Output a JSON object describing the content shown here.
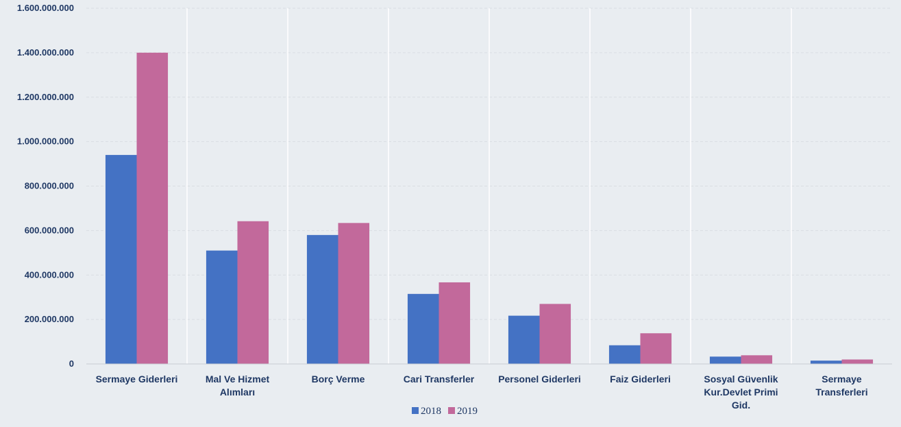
{
  "chart_data": {
    "type": "bar",
    "title": "",
    "xlabel": "",
    "ylabel": "",
    "ylim": [
      0,
      1600000000
    ],
    "yticks": [
      0,
      200000000,
      400000000,
      600000000,
      800000000,
      1000000000,
      1200000000,
      1400000000,
      1600000000
    ],
    "ytick_labels": [
      "0",
      "200.000.000",
      "400.000.000",
      "600.000.000",
      "800.000.000",
      "1.000.000.000",
      "1.200.000.000",
      "1.400.000.000",
      "1.600.000.000"
    ],
    "categories": [
      "Sermaye Giderleri",
      "Mal Ve Hizmet Alımları",
      "Borç Verme",
      "Cari Transferler",
      "Personel Giderleri",
      "Faiz Giderleri",
      "Sosyal Güvenlik Kur.Devlet Primi Gid.",
      "Sermaye Transferleri"
    ],
    "category_lines": [
      [
        "Sermaye Giderleri"
      ],
      [
        "Mal Ve Hizmet",
        "Alımları"
      ],
      [
        "Borç Verme"
      ],
      [
        "Cari Transferler"
      ],
      [
        "Personel Giderleri"
      ],
      [
        "Faiz Giderleri"
      ],
      [
        "Sosyal Güvenlik",
        "Kur.Devlet Primi",
        "Gid."
      ],
      [
        "Sermaye",
        "Transferleri"
      ]
    ],
    "series": [
      {
        "name": "2018",
        "color": "#4472c4",
        "values": [
          940000000,
          510000000,
          580000000,
          315000000,
          217000000,
          84000000,
          33000000,
          15000000
        ]
      },
      {
        "name": "2019",
        "color": "#c2699b",
        "values": [
          1400000000,
          642000000,
          634000000,
          367000000,
          270000000,
          138000000,
          39000000,
          20000000
        ]
      }
    ],
    "grid": true,
    "legend": "bottom"
  }
}
